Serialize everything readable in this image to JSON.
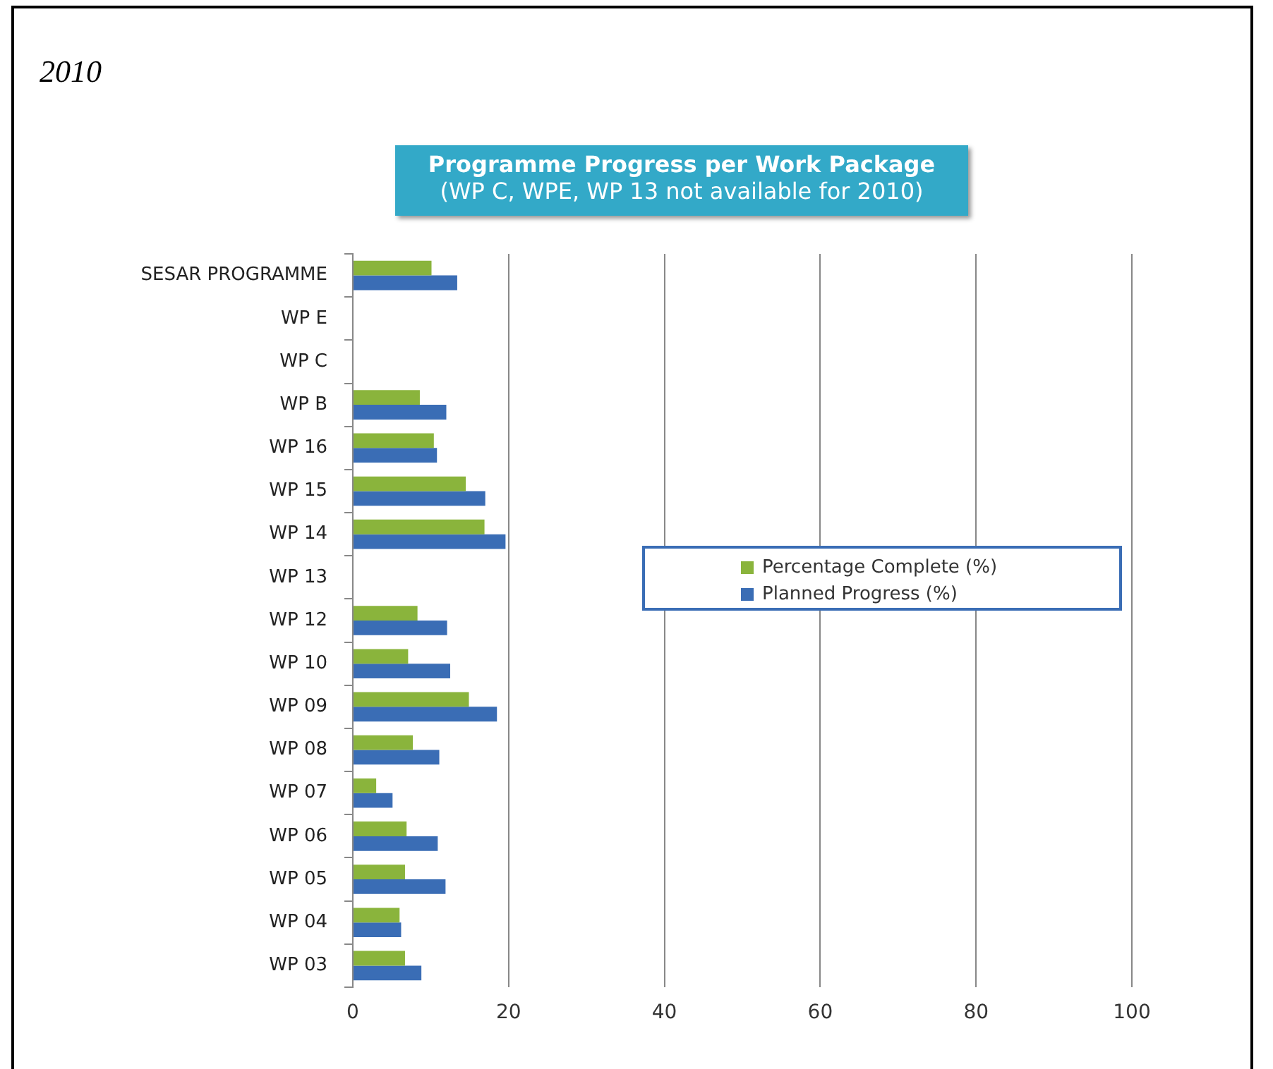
{
  "chart_data": {
    "type": "bar",
    "orientation": "horizontal",
    "title": "Programme Progress per Work Package",
    "subtitle": "(WP C, WPE, WP 13 not available for 2010)",
    "annotations": [
      "2010"
    ],
    "categories": [
      "SESAR PROGRAMME",
      "WP E",
      "WP C",
      "WP B",
      "WP 16",
      "WP 15",
      "WP 14",
      "WP 13",
      "WP 12",
      "WP 10",
      "WP 09",
      "WP 08",
      "WP 07",
      "WP 06",
      "WP 05",
      "WP 04",
      "WP 03"
    ],
    "series": [
      {
        "name": "Percentage Complete (%)",
        "color": "#8ab43c",
        "values": [
          10.1,
          null,
          null,
          8.6,
          10.4,
          14.5,
          16.9,
          null,
          8.3,
          7.1,
          14.9,
          7.7,
          3.0,
          6.9,
          6.7,
          6.0,
          6.7
        ]
      },
      {
        "name": "Planned Progress (%)",
        "color": "#3a6db5",
        "values": [
          13.4,
          null,
          null,
          12.0,
          10.8,
          17.0,
          19.6,
          null,
          12.1,
          12.5,
          18.5,
          11.1,
          5.1,
          10.9,
          11.9,
          6.2,
          8.8
        ]
      }
    ],
    "xlim": [
      0,
      100
    ],
    "xticks": [
      0,
      20,
      40,
      60,
      80,
      100
    ],
    "grid": "x",
    "legend": "right"
  }
}
